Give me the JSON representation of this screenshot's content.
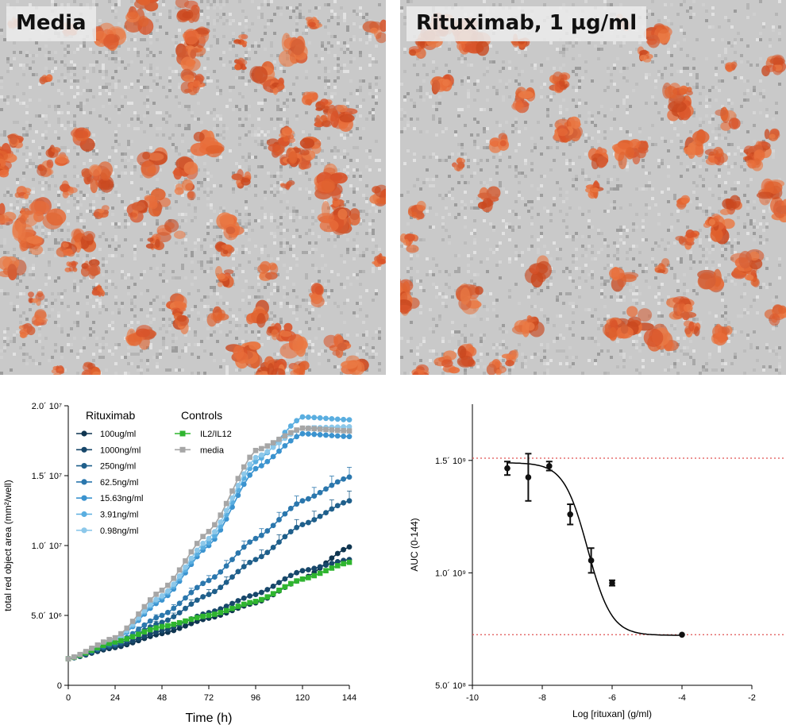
{
  "panels": {
    "left_image_label": "Media",
    "right_image_label": "Rituximab, 1 µg/ml"
  },
  "chart_data": [
    {
      "type": "line",
      "xlabel": "Time (h)",
      "ylabel": "total red object area (mm²/well)",
      "xlim": [
        0,
        144
      ],
      "ylim": [
        0,
        20000000
      ],
      "x_ticks": [
        "0",
        "24",
        "48",
        "72",
        "96",
        "120",
        "144"
      ],
      "y_ticks": [
        "0",
        "5.0´ 10⁶",
        "1.0´ 10⁷",
        "1.5´ 10⁷",
        "2.0´ 10⁷"
      ],
      "legend_groups": [
        {
          "title": "Rituximab",
          "entries": [
            "100ug/ml",
            "1000ng/ml",
            "250ng/ml",
            "62.5ng/ml",
            "15.63ng/ml",
            "3.91ng/ml",
            "0.98ng/ml"
          ]
        },
        {
          "title": "Controls",
          "entries": [
            "IL2/IL12",
            "media"
          ]
        }
      ],
      "x": [
        0,
        24,
        48,
        72,
        96,
        120,
        144
      ],
      "series": [
        {
          "name": "100ug/ml",
          "color": "#0f3550",
          "marker": "circle",
          "values": [
            1900000,
            2700000,
            3700000,
            4800000,
            5900000,
            7600000,
            9900000
          ]
        },
        {
          "name": "1000ng/ml",
          "color": "#17476a",
          "marker": "circle",
          "values": [
            1900000,
            2800000,
            3900000,
            5200000,
            6500000,
            8200000,
            9000000
          ]
        },
        {
          "name": "250ng/ml",
          "color": "#1f5f8b",
          "marker": "circle",
          "values": [
            1900000,
            2900000,
            4500000,
            6500000,
            9000000,
            11500000,
            13200000
          ]
        },
        {
          "name": "62.5ng/ml",
          "color": "#2b77ad",
          "marker": "circle",
          "values": [
            1900000,
            3000000,
            5000000,
            7500000,
            10500000,
            13200000,
            14900000
          ]
        },
        {
          "name": "15.63ng/ml",
          "color": "#3b93cf",
          "marker": "circle",
          "values": [
            1900000,
            3200000,
            6100000,
            10000000,
            15500000,
            18000000,
            17800000
          ]
        },
        {
          "name": "3.91ng/ml",
          "color": "#5aaee0",
          "marker": "circle",
          "values": [
            1900000,
            3200000,
            6300000,
            10200000,
            16000000,
            19200000,
            19000000
          ]
        },
        {
          "name": "0.98ng/ml",
          "color": "#8cc8ea",
          "marker": "circle",
          "values": [
            1900000,
            3300000,
            6400000,
            10500000,
            16300000,
            18400000,
            18500000
          ]
        },
        {
          "name": "IL2/IL12",
          "color": "#2fb52f",
          "marker": "square",
          "values": [
            1900000,
            3100000,
            4200000,
            5000000,
            6000000,
            7600000,
            8800000
          ]
        },
        {
          "name": "media",
          "color": "#a6a6a6",
          "marker": "square",
          "values": [
            1900000,
            3400000,
            6800000,
            11000000,
            16800000,
            18400000,
            18200000
          ]
        }
      ]
    },
    {
      "type": "scatter",
      "xlabel": "Log [rituxan] (g/ml)",
      "ylabel": "AUC (0-144)",
      "xlim": [
        -10,
        -2
      ],
      "ylim": [
        500000000,
        1750000000
      ],
      "x_ticks": [
        "-10",
        "-8",
        "-6",
        "-4",
        "-2"
      ],
      "y_ticks": [
        "5.0´ 10⁸",
        "1.0´ 10⁹",
        "1.5´ 10⁹"
      ],
      "reference_lines": [
        1510000000,
        725000000
      ],
      "points": [
        {
          "x": -9.0,
          "y": 1465000000,
          "err": 30000000
        },
        {
          "x": -8.4,
          "y": 1425000000,
          "err": 105000000
        },
        {
          "x": -7.8,
          "y": 1475000000,
          "err": 20000000
        },
        {
          "x": -7.2,
          "y": 1260000000,
          "err": 45000000
        },
        {
          "x": -6.6,
          "y": 1055000000,
          "err": 55000000
        },
        {
          "x": -6.0,
          "y": 955000000,
          "err": 12000000
        },
        {
          "x": -4.0,
          "y": 725000000,
          "err": 0
        }
      ],
      "fit": {
        "model": "sigmoid",
        "top": 1490000000,
        "bottom": 722000000,
        "log_ec50": -6.7,
        "hill": 0.85
      },
      "colors": {
        "points": "#111111",
        "reference": "#e05050"
      }
    }
  ]
}
